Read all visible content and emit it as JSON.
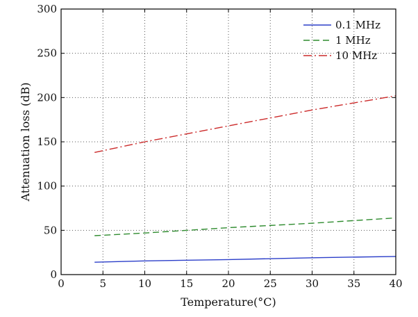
{
  "chart_data": {
    "type": "line",
    "title": "",
    "xlabel": "Temperature(°C)",
    "ylabel": "Attenuation loss (dB)",
    "xlim": [
      0,
      40
    ],
    "ylim": [
      0,
      300
    ],
    "xticks": [
      0,
      5,
      10,
      15,
      20,
      25,
      30,
      35,
      40
    ],
    "yticks": [
      0,
      50,
      100,
      150,
      200,
      250,
      300
    ],
    "grid": true,
    "legend_position": "top-right",
    "series": [
      {
        "name": "0.1 MHz",
        "color": "#2b3ec9",
        "style": "solid",
        "x": [
          4,
          10,
          20,
          30,
          40
        ],
        "y": [
          14,
          15.5,
          17,
          19,
          20.5
        ]
      },
      {
        "name": "1 MHz",
        "color": "#2e8b2e",
        "style": "dashed",
        "x": [
          4,
          10,
          20,
          30,
          40
        ],
        "y": [
          44,
          47,
          53,
          58,
          64
        ]
      },
      {
        "name": "10 MHz",
        "color": "#cc2a2a",
        "style": "dashdot",
        "x": [
          4,
          10,
          20,
          30,
          40
        ],
        "y": [
          138,
          150,
          168,
          186,
          202
        ]
      }
    ]
  }
}
